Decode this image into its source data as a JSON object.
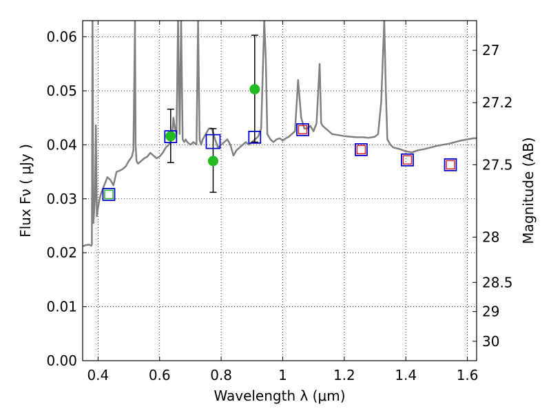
{
  "chart_data": {
    "type": "line",
    "title": "",
    "xlabel": "Wavelength  λ (μm)",
    "ylabel": "Flux  Fν  ( μJy )",
    "ylabel_right": "Magnitude (AB)",
    "xlim": [
      0.35,
      1.63
    ],
    "ylim": [
      0.0,
      0.063
    ],
    "grid": true,
    "x_ticks": [
      0.4,
      0.6,
      0.8,
      1.0,
      1.2,
      1.4,
      1.6
    ],
    "x_tick_labels": [
      "0.4",
      "0.6",
      "0.8",
      "1",
      "1.2",
      "1.4",
      "1.6"
    ],
    "y_ticks": [
      0.0,
      0.01,
      0.02,
      0.03,
      0.04,
      0.05,
      0.06
    ],
    "y_tick_labels": [
      "0.00",
      "0.01",
      "0.02",
      "0.03",
      "0.04",
      "0.05",
      "0.06"
    ],
    "right_ticks": [
      {
        "flux": 0.0575,
        "label": "27"
      },
      {
        "flux": 0.0478,
        "label": "27.2"
      },
      {
        "flux": 0.0363,
        "label": "27.5"
      },
      {
        "flux": 0.0229,
        "label": "28"
      },
      {
        "flux": 0.0145,
        "label": "28.5"
      },
      {
        "flux": 0.0091,
        "label": "29"
      },
      {
        "flux": 0.0036,
        "label": "30"
      }
    ],
    "model_spectrum": {
      "color": "#808080",
      "x": [
        0.35,
        0.36,
        0.37,
        0.375,
        0.378,
        0.38,
        0.382,
        0.385,
        0.39,
        0.393,
        0.396,
        0.4,
        0.405,
        0.41,
        0.42,
        0.43,
        0.44,
        0.45,
        0.46,
        0.47,
        0.48,
        0.49,
        0.5,
        0.51,
        0.515,
        0.52,
        0.522,
        0.525,
        0.53,
        0.54,
        0.55,
        0.56,
        0.57,
        0.58,
        0.59,
        0.6,
        0.61,
        0.62,
        0.63,
        0.64,
        0.645,
        0.65,
        0.655,
        0.66,
        0.665,
        0.67,
        0.675,
        0.68,
        0.685,
        0.69,
        0.7,
        0.71,
        0.72,
        0.725,
        0.73,
        0.735,
        0.74,
        0.75,
        0.76,
        0.77,
        0.78,
        0.79,
        0.8,
        0.81,
        0.82,
        0.83,
        0.84,
        0.85,
        0.86,
        0.87,
        0.88,
        0.89,
        0.9,
        0.91,
        0.92,
        0.93,
        0.94,
        0.945,
        0.95,
        0.96,
        0.97,
        0.98,
        0.99,
        1.0,
        1.01,
        1.02,
        1.03,
        1.04,
        1.05,
        1.06,
        1.07,
        1.08,
        1.09,
        1.1,
        1.11,
        1.12,
        1.125,
        1.13,
        1.14,
        1.15,
        1.16,
        1.18,
        1.2,
        1.22,
        1.24,
        1.26,
        1.28,
        1.3,
        1.31,
        1.32,
        1.33,
        1.335,
        1.34,
        1.35,
        1.36,
        1.38,
        1.4,
        1.42,
        1.44,
        1.46,
        1.48,
        1.5,
        1.52,
        1.54,
        1.56,
        1.58,
        1.6,
        1.62,
        1.63
      ],
      "y": [
        0.0212,
        0.0214,
        0.0215,
        0.0214,
        0.0213,
        0.0215,
        0.063,
        0.0255,
        0.03,
        0.0436,
        0.0268,
        0.0283,
        0.03,
        0.031,
        0.0325,
        0.034,
        0.0335,
        0.0325,
        0.035,
        0.0352,
        0.0355,
        0.036,
        0.037,
        0.0378,
        0.039,
        0.063,
        0.04,
        0.037,
        0.0365,
        0.037,
        0.0375,
        0.0378,
        0.0385,
        0.038,
        0.0375,
        0.0378,
        0.0385,
        0.0395,
        0.04,
        0.041,
        0.045,
        0.043,
        0.042,
        0.063,
        0.042,
        0.063,
        0.041,
        0.0405,
        0.041,
        0.0405,
        0.04,
        0.0405,
        0.04,
        0.063,
        0.041,
        0.04,
        0.041,
        0.042,
        0.043,
        0.043,
        0.041,
        0.0395,
        0.04,
        0.0405,
        0.041,
        0.04,
        0.038,
        0.039,
        0.0395,
        0.04,
        0.0405,
        0.04,
        0.0405,
        0.041,
        0.0415,
        0.043,
        0.063,
        0.056,
        0.042,
        0.041,
        0.0405,
        0.041,
        0.0412,
        0.0408,
        0.0412,
        0.0415,
        0.042,
        0.0425,
        0.052,
        0.045,
        0.043,
        0.043,
        0.0435,
        0.0425,
        0.044,
        0.055,
        0.044,
        0.0435,
        0.043,
        0.0425,
        0.042,
        0.0418,
        0.0416,
        0.0415,
        0.0414,
        0.0414,
        0.0413,
        0.0415,
        0.042,
        0.048,
        0.063,
        0.05,
        0.041,
        0.04,
        0.0395,
        0.0392,
        0.0388,
        0.0386,
        0.039,
        0.0392,
        0.0395,
        0.0398,
        0.04,
        0.0402,
        0.0405,
        0.0408,
        0.041,
        0.0412,
        0.0412
      ]
    },
    "observed_points": {
      "color": "#22bb22",
      "points": [
        {
          "x": 0.636,
          "y": 0.0416,
          "yerr_low": 0.0367,
          "yerr_high": 0.0466
        },
        {
          "x": 0.774,
          "y": 0.037,
          "yerr_low": 0.0312,
          "yerr_high": 0.043
        },
        {
          "x": 0.909,
          "y": 0.0503,
          "yerr_low": 0.0405,
          "yerr_high": 0.0603
        }
      ]
    },
    "model_band_squares": {
      "color": "#0000cc",
      "points": [
        {
          "x": 0.435,
          "y": 0.0308,
          "size": "small"
        },
        {
          "x": 0.636,
          "y": 0.0415,
          "size": "small"
        },
        {
          "x": 0.774,
          "y": 0.0406,
          "size": "large"
        },
        {
          "x": 0.909,
          "y": 0.0414,
          "size": "small"
        },
        {
          "x": 1.065,
          "y": 0.0428,
          "size": "small"
        },
        {
          "x": 1.255,
          "y": 0.0391,
          "size": "small"
        },
        {
          "x": 1.405,
          "y": 0.0372,
          "size": "small"
        },
        {
          "x": 1.545,
          "y": 0.0363,
          "size": "small"
        }
      ]
    },
    "inner_squares": {
      "points": [
        {
          "x": 0.435,
          "y": 0.0308,
          "color": "#22bb22"
        },
        {
          "x": 1.065,
          "y": 0.0428,
          "color": "#dd2222"
        },
        {
          "x": 1.255,
          "y": 0.0391,
          "color": "#dd2222"
        },
        {
          "x": 1.405,
          "y": 0.0372,
          "color": "#dd2222"
        },
        {
          "x": 1.545,
          "y": 0.0363,
          "color": "#dd2222"
        }
      ]
    }
  }
}
